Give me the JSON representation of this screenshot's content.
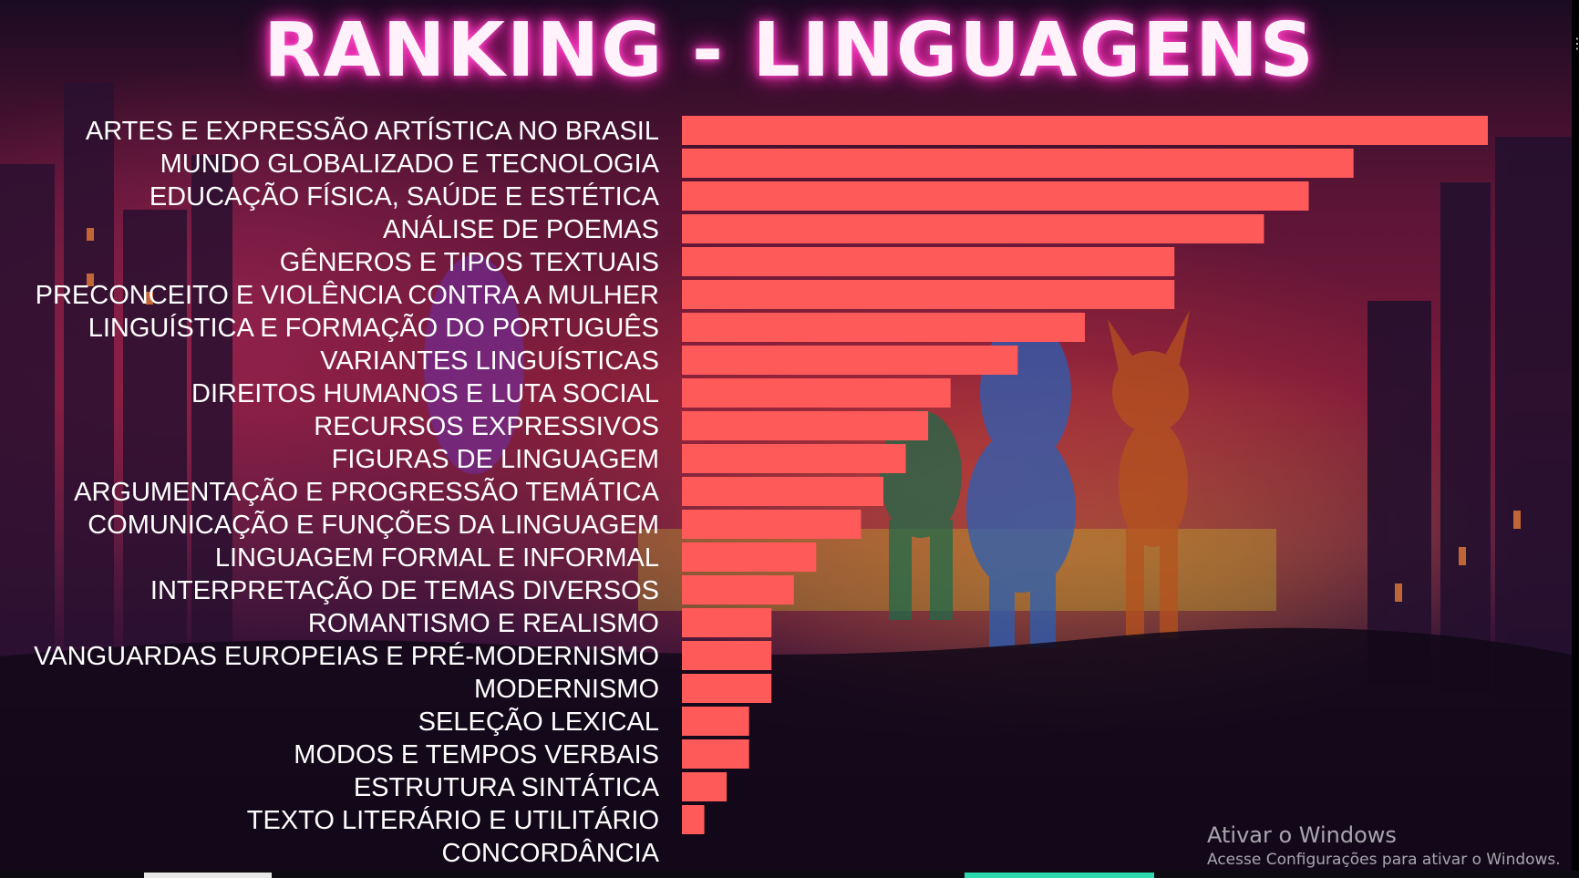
{
  "title": "RANKING - LINGUAGENS",
  "chart_data": {
    "type": "bar",
    "orientation": "horizontal",
    "categories": [
      "ARTES E EXPRESSÃO ARTÍSTICA NO BRASIL",
      "MUNDO GLOBALIZADO E TECNOLOGIA",
      "EDUCAÇÃO FÍSICA, SAÚDE E ESTÉTICA",
      "ANÁLISE DE POEMAS",
      "GÊNEROS E TIPOS TEXTUAIS",
      "PRECONCEITO E VIOLÊNCIA CONTRA A MULHER",
      "LINGUÍSTICA E FORMAÇÃO DO PORTUGUÊS",
      "VARIANTES LINGUÍSTICAS",
      "DIREITOS HUMANOS E LUTA SOCIAL",
      "RECURSOS EXPRESSIVOS",
      "FIGURAS DE LINGUAGEM",
      "ARGUMENTAÇÃO E PROGRESSÃO TEMÁTICA",
      "COMUNICAÇÃO E FUNÇÕES DA LINGUAGEM",
      "LINGUAGEM FORMAL E INFORMAL",
      "INTERPRETAÇÃO DE TEMAS DIVERSOS",
      "ROMANTISMO E REALISMO",
      "VANGUARDAS EUROPEIAS E PRÉ-MODERNISMO",
      "MODERNISMO",
      "SELEÇÃO LEXICAL",
      "MODOS E TEMPOS VERBAIS",
      "ESTRUTURA SINTÁTICA",
      "TEXTO LITERÁRIO E UTILITÁRIO",
      "CONCORDÂNCIA"
    ],
    "values": [
      36,
      30,
      28,
      26,
      22,
      22,
      18,
      15,
      12,
      11,
      10,
      9,
      8,
      6,
      5,
      4,
      4,
      4,
      3,
      3,
      2,
      1,
      0
    ],
    "xlim": [
      0,
      36
    ],
    "bar_color": "#ff5a5a",
    "axes_visible": false,
    "grid": false,
    "legend": "none"
  },
  "watermark": {
    "title": "Ativar o Windows",
    "subtitle": "Acesse Configurações para ativar o Windows."
  }
}
